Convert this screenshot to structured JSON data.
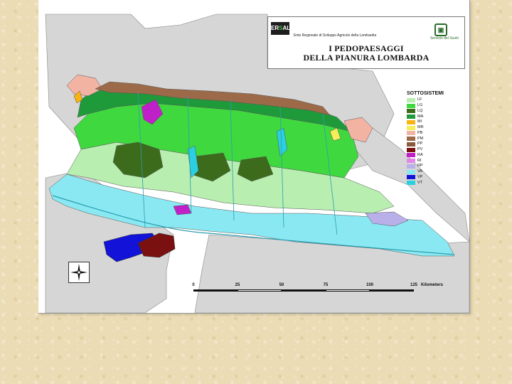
{
  "header": {
    "title_line1": "I PEDOPAESAGGI",
    "title_line2": "DELLA PIANURA LOMBARDA",
    "agency": "Ente Regionale di Sviluppo Agricolo della Lombardia",
    "logo_left_text": "ERSAL",
    "logo_right_caption": "Servizio del Suolo"
  },
  "legend": {
    "title": "SOTTOSISTEMI",
    "items": [
      {
        "code": "LF",
        "color": "#b8eeb0"
      },
      {
        "code": "LG",
        "color": "#3fd83f"
      },
      {
        "code": "LQ",
        "color": "#3b6b1b"
      },
      {
        "code": "MA",
        "color": "#1f9a3a"
      },
      {
        "code": "MI",
        "color": "#f6b312"
      },
      {
        "code": "MR",
        "color": "#f5ee5a"
      },
      {
        "code": "PB",
        "color": "#f2b3a3"
      },
      {
        "code": "PM",
        "color": "#9c6a48"
      },
      {
        "code": "PP",
        "color": "#8b5a3c"
      },
      {
        "code": "PV",
        "color": "#7a1010"
      },
      {
        "code": "RA",
        "color": "#c020c8"
      },
      {
        "code": "RI",
        "color": "#e286ea"
      },
      {
        "code": "RP",
        "color": "#b9b0ea"
      },
      {
        "code": "VA",
        "color": "#8ae8f2"
      },
      {
        "code": "VP",
        "color": "#1212d8"
      },
      {
        "code": "VT",
        "color": "#2ad0e0"
      }
    ]
  },
  "scale": {
    "ticks": [
      "0",
      "25",
      "50",
      "75",
      "100",
      "125"
    ],
    "unit": "Kilometers"
  },
  "colors": {
    "page_background": "#ecdcb5",
    "outside_region": "#d6d6d6"
  }
}
